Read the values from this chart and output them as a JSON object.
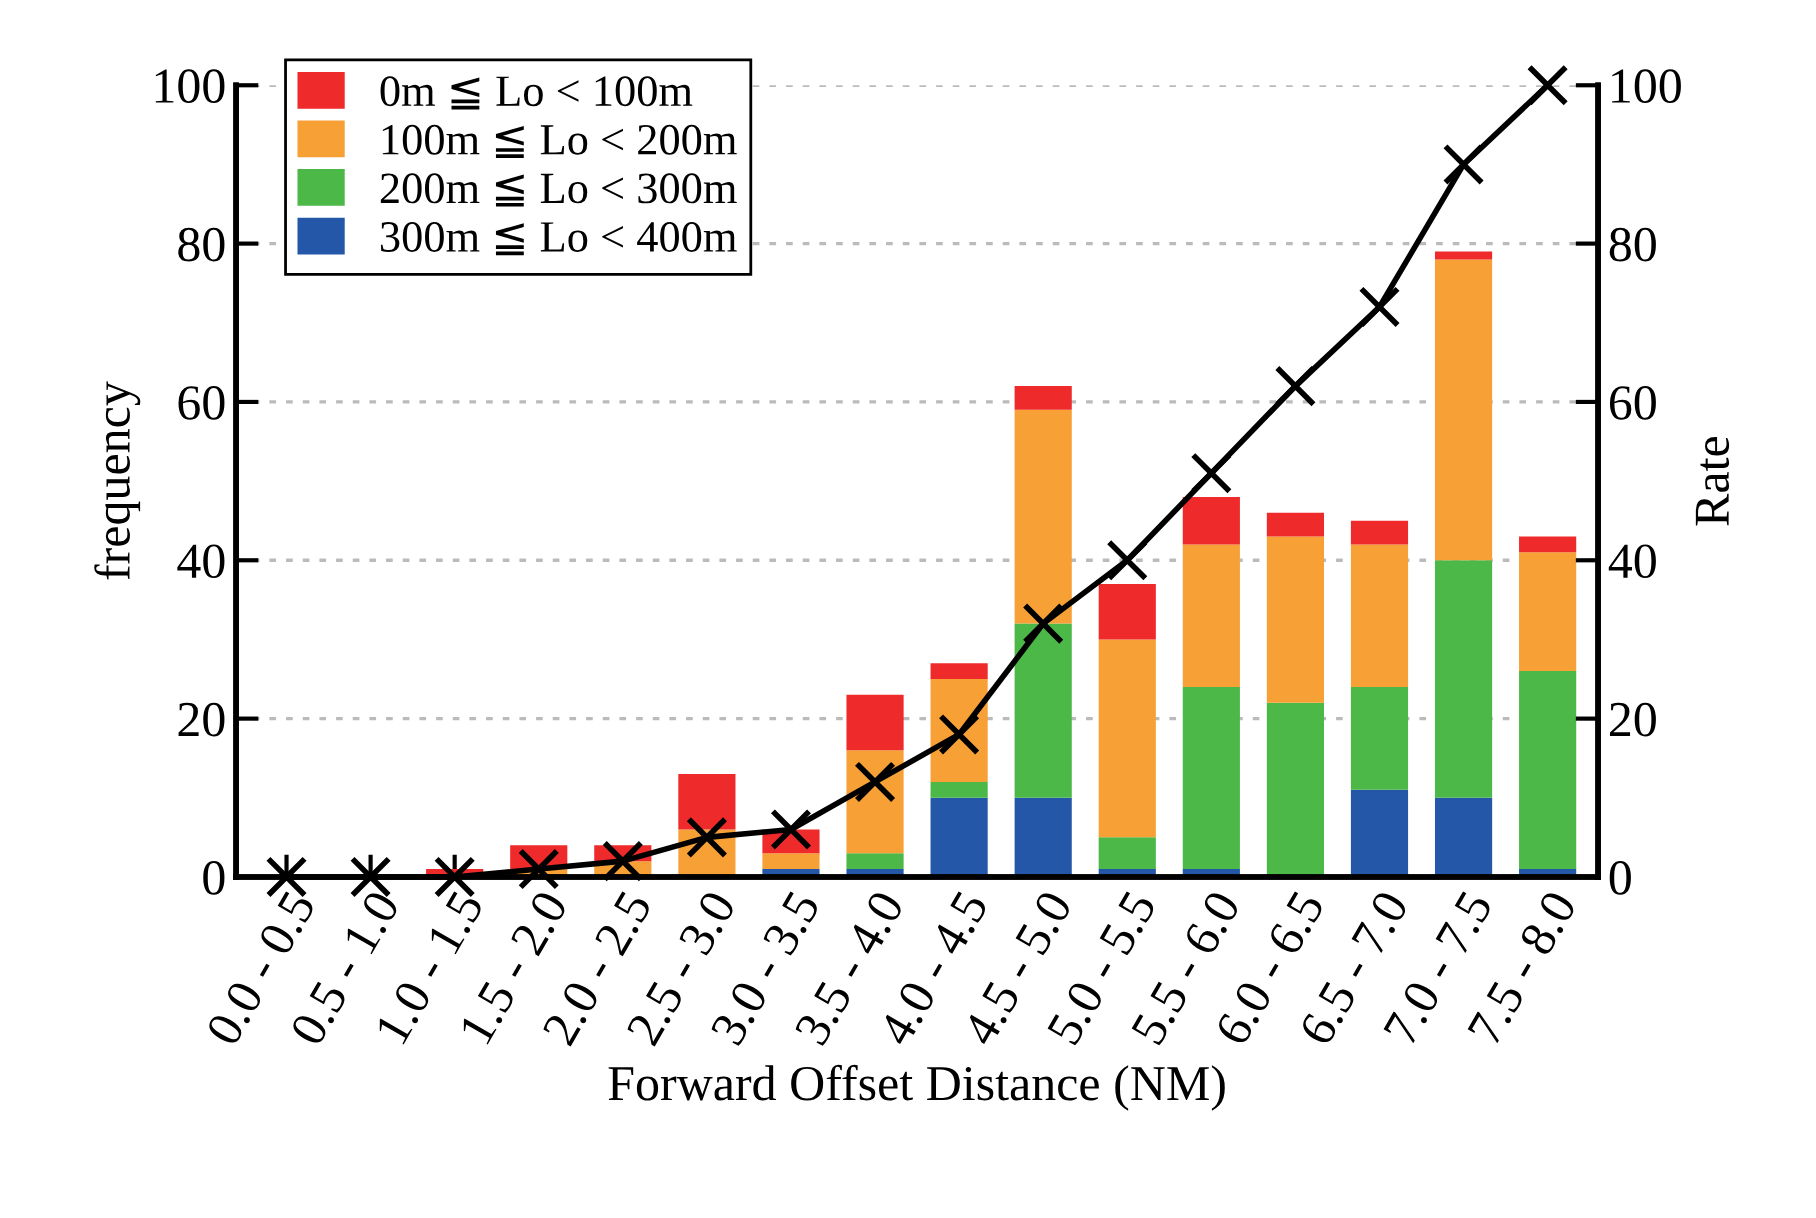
{
  "chart_data": {
    "type": "bar",
    "stacked": true,
    "xlabel": "Forward Offset Distance (NM)",
    "ylabel": "frequency",
    "y2label": "Rate",
    "categories": [
      "0.0 - 0.5",
      "0.5 - 1.0",
      "1.0 - 1.5",
      "1.5 - 2.0",
      "2.0 - 2.5",
      "2.5 - 3.0",
      "3.0 - 3.5",
      "3.5 - 4.0",
      "4.0 - 4.5",
      "4.5 - 5.0",
      "5.0 - 5.5",
      "5.5 - 6.0",
      "6.0 - 6.5",
      "6.5 - 7.0",
      "7.0 - 7.5",
      "7.5 - 8.0"
    ],
    "series": [
      {
        "name": "300m ≦ Lo < 400m",
        "color": "#2457a8",
        "values": [
          0,
          0,
          0,
          0,
          0,
          0,
          1,
          1,
          10,
          10,
          1,
          1,
          0,
          11,
          10,
          1
        ]
      },
      {
        "name": "200m ≦ Lo < 300m",
        "color": "#4cb848",
        "values": [
          0,
          0,
          0,
          0,
          0,
          0,
          0,
          2,
          2,
          22,
          4,
          23,
          22,
          13,
          30,
          25
        ]
      },
      {
        "name": "100m ≦ Lo < 200m",
        "color": "#f7a035",
        "values": [
          0,
          0,
          0,
          1,
          2,
          6,
          2,
          13,
          13,
          27,
          25,
          18,
          21,
          18,
          38,
          15
        ]
      },
      {
        "name": "0m ≦ Lo < 100m",
        "color": "#ee2a2a",
        "values": [
          0,
          0,
          1,
          3,
          2,
          7,
          3,
          7,
          2,
          3,
          7,
          6,
          3,
          3,
          1,
          2
        ]
      },
      {
        "type": "line",
        "axis": "y2",
        "color": "#000000",
        "marker": "cross",
        "values": [
          0,
          0,
          0,
          1,
          2,
          5,
          6,
          12,
          18,
          32,
          40,
          51,
          62,
          72,
          90,
          100
        ]
      }
    ],
    "ylim": [
      0,
      100
    ],
    "yticks": [
      0,
      20,
      40,
      60,
      80,
      100
    ],
    "y2lim": [
      0,
      100
    ],
    "y2ticks": [
      0,
      20,
      40,
      60,
      80,
      100
    ],
    "grid": "y",
    "legend": "top left"
  }
}
